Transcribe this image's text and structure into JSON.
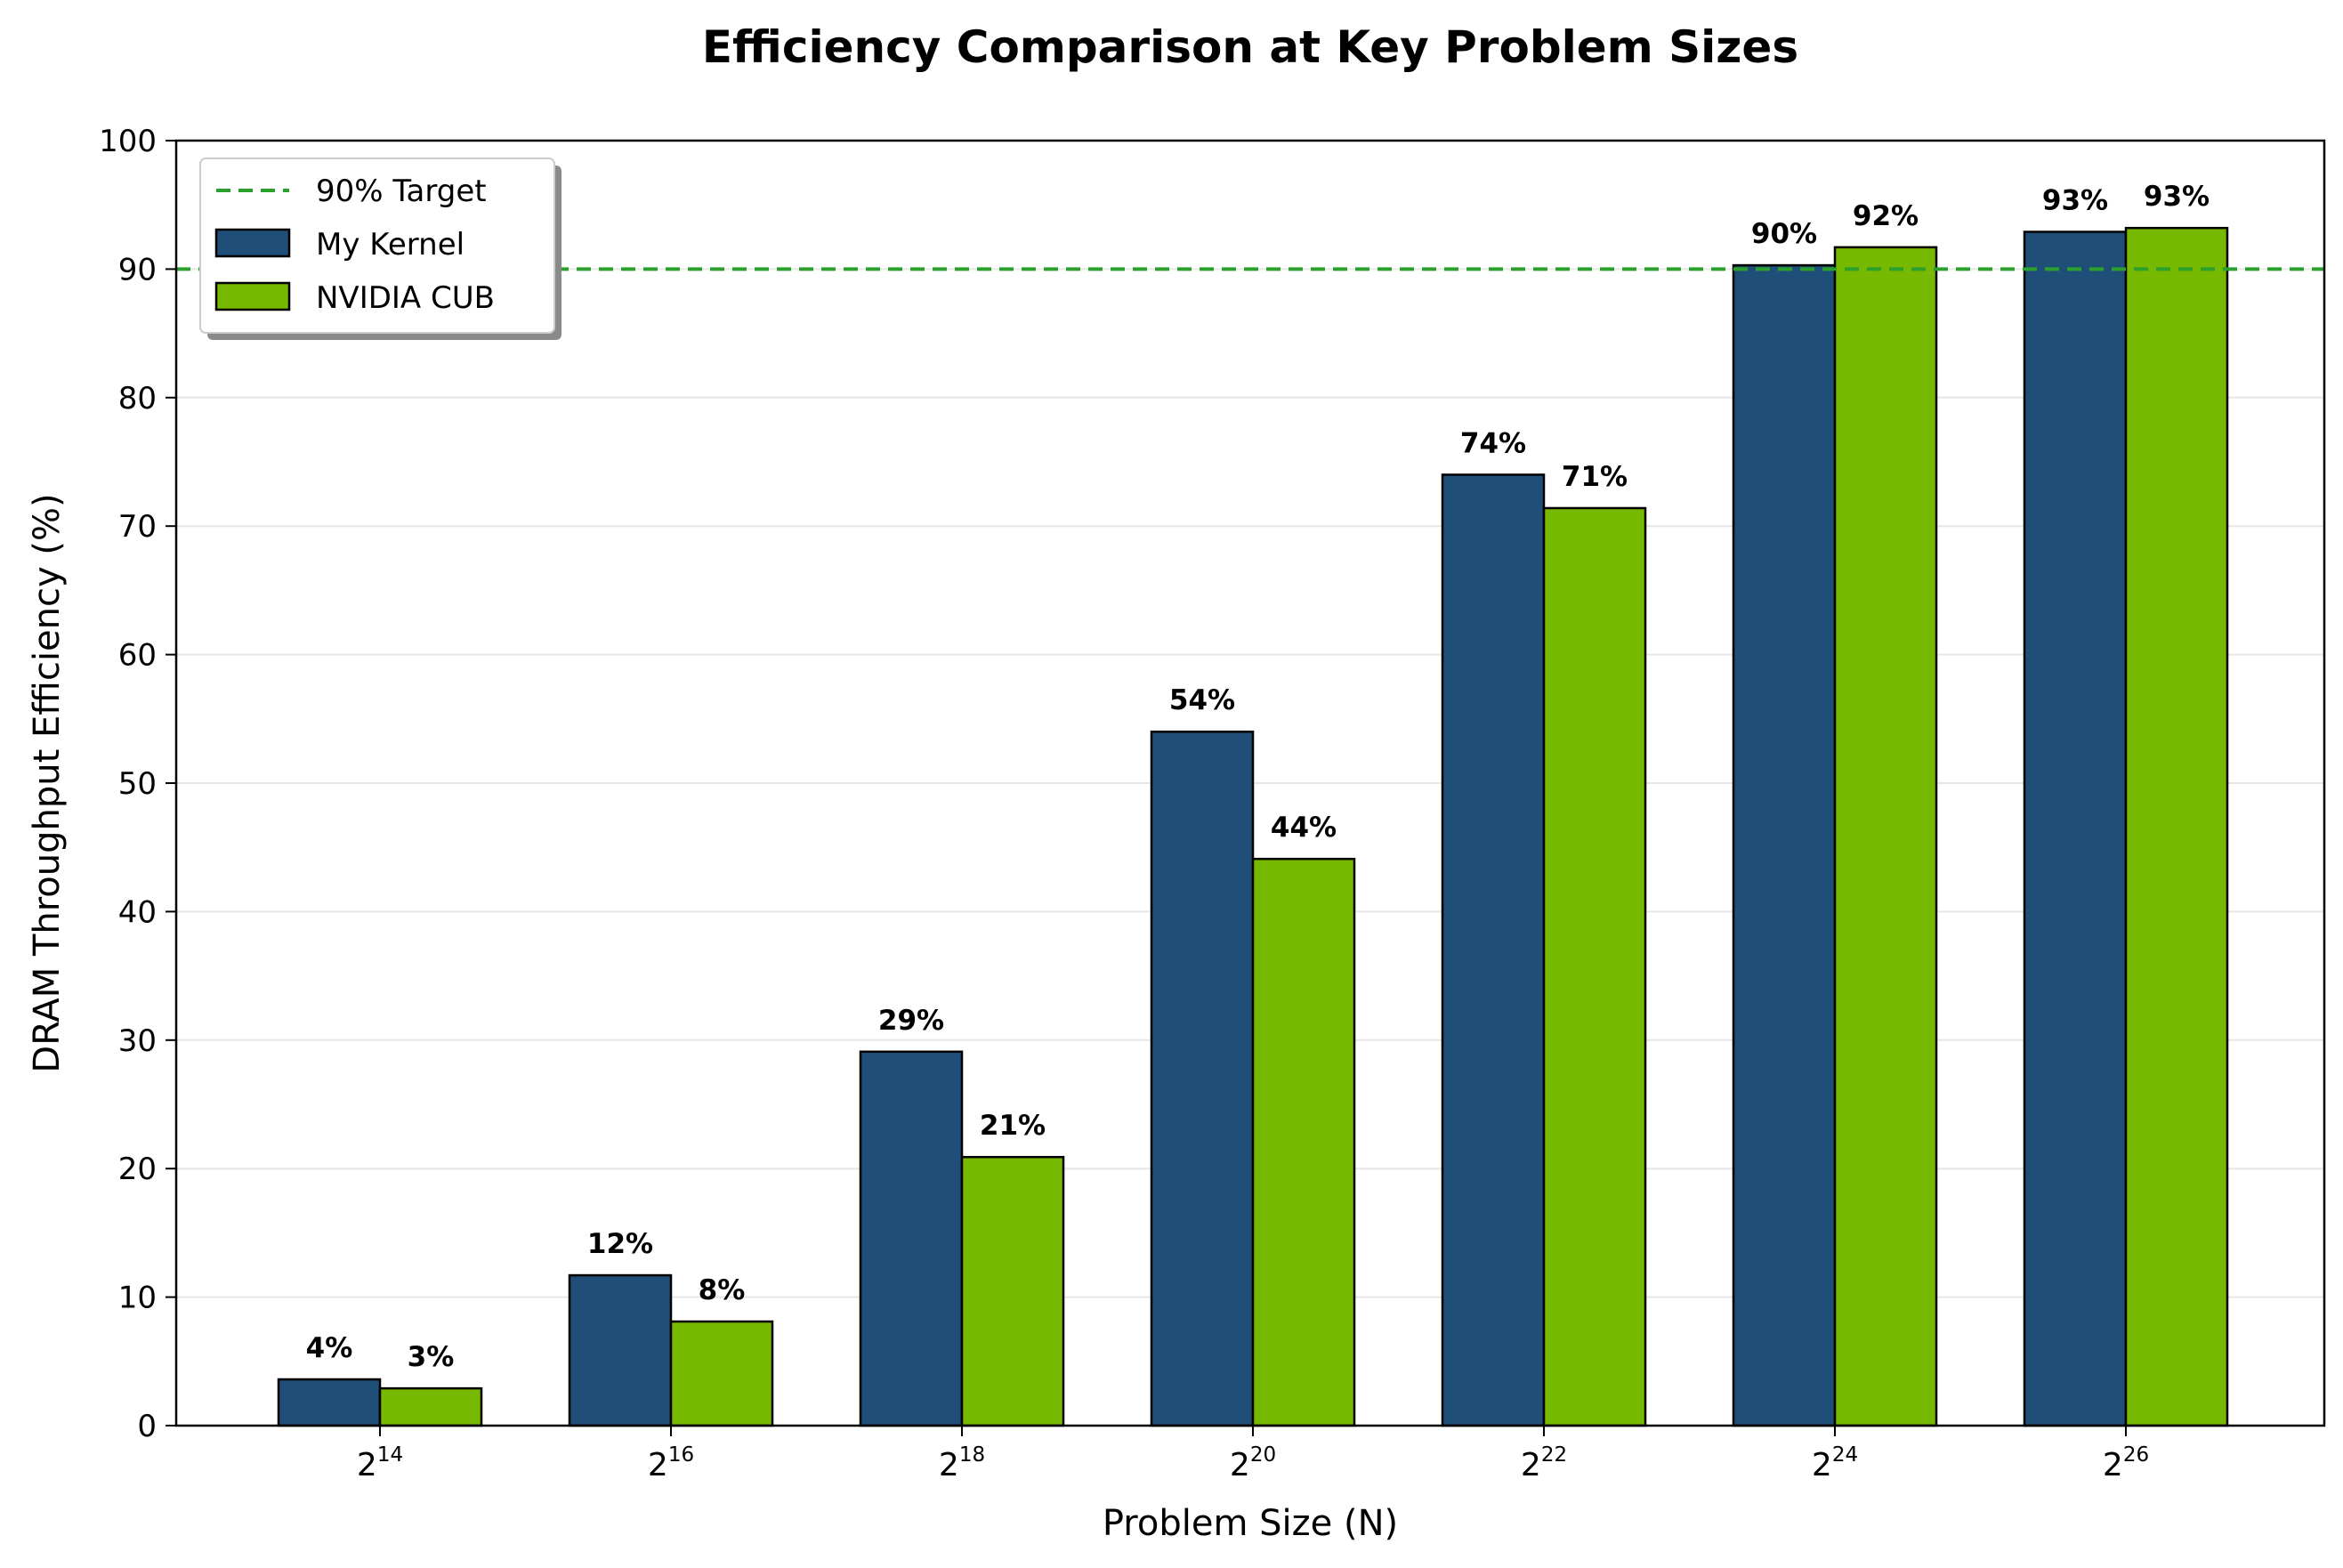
{
  "chart_data": {
    "type": "bar",
    "title": "Efficiency Comparison at Key Problem Sizes",
    "xlabel": "Problem Size (N)",
    "ylabel": "DRAM Throughput Efficiency (%)",
    "ylim": [
      0,
      100
    ],
    "yticks": [
      0,
      10,
      20,
      30,
      40,
      50,
      60,
      70,
      80,
      90,
      100
    ],
    "grid": true,
    "legend_position": "top-left",
    "categories": [
      {
        "base": "2",
        "exp": "14"
      },
      {
        "base": "2",
        "exp": "16"
      },
      {
        "base": "2",
        "exp": "18"
      },
      {
        "base": "2",
        "exp": "20"
      },
      {
        "base": "2",
        "exp": "22"
      },
      {
        "base": "2",
        "exp": "24"
      },
      {
        "base": "2",
        "exp": "26"
      }
    ],
    "series": [
      {
        "name": "My Kernel",
        "color": "#1f4e79",
        "values": [
          3.6,
          11.7,
          29.1,
          54.0,
          74.0,
          90.3,
          92.9
        ],
        "labels": [
          "4%",
          "12%",
          "29%",
          "54%",
          "74%",
          "90%",
          "93%"
        ]
      },
      {
        "name": "NVIDIA CUB",
        "color": "#76b900",
        "values": [
          2.9,
          8.1,
          20.9,
          44.1,
          71.4,
          91.7,
          93.2
        ],
        "labels": [
          "3%",
          "8%",
          "21%",
          "44%",
          "71%",
          "92%",
          "93%"
        ]
      }
    ],
    "reference_line": {
      "name": "90% Target",
      "value": 90,
      "color": "#2ca02c",
      "style": "dashed"
    }
  }
}
